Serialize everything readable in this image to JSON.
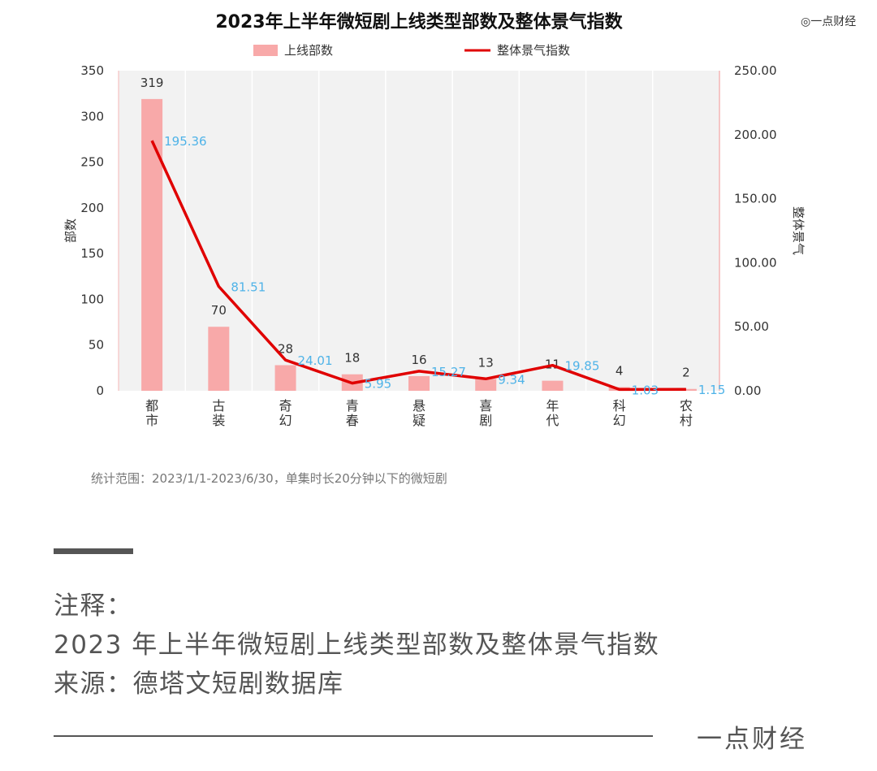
{
  "watermark": "◎一点财经",
  "chart_data": {
    "type": "bar",
    "title": "2023年上半年微短剧上线类型部数及整体景气指数",
    "categories": [
      "都市",
      "古装",
      "奇幻",
      "青春",
      "悬疑",
      "喜剧",
      "年代",
      "科幻",
      "农村"
    ],
    "legend_position": "top",
    "series": [
      {
        "name": "上线部数",
        "type": "bar",
        "axis": "left",
        "color": "#f8a9a9",
        "values": [
          319,
          70,
          28,
          18,
          16,
          13,
          11,
          4,
          2
        ],
        "labels": [
          "319",
          "70",
          "28",
          "18",
          "16",
          "13",
          "11",
          "4",
          "2"
        ]
      },
      {
        "name": "整体景气指数",
        "type": "line",
        "axis": "right",
        "color": "#e00000",
        "values": [
          195.36,
          81.51,
          24.01,
          5.95,
          15.27,
          9.34,
          19.85,
          1.03,
          1.15
        ],
        "labels": [
          "195.36",
          "81.51",
          "24.01",
          "5.95",
          "15.27",
          "9.34",
          "19.85",
          "1.03",
          "1.15"
        ]
      }
    ],
    "ylabel": "部数",
    "y2label": "整体景气",
    "ylim": [
      0,
      350
    ],
    "yticks": [
      "0",
      "50",
      "100",
      "150",
      "200",
      "250",
      "300",
      "350"
    ],
    "y2lim": [
      0,
      250
    ],
    "y2ticks": [
      "0.00",
      "50.00",
      "100.00",
      "150.00",
      "200.00",
      "250.00"
    ],
    "grid": true,
    "footnote": "统计范围：2023/1/1-2023/6/30，单集时长20分钟以下的微短剧",
    "colors": {
      "plot_bg": "#f2f2f2",
      "grid": "#ffffff",
      "data_label_line": "#4fb3e8",
      "data_label_bar": "#333333"
    }
  },
  "notes": {
    "heading": "注释：",
    "line1": "2023 年上半年微短剧上线类型部数及整体景气指数",
    "line2": "来源：德塔文短剧数据库"
  },
  "brand": "一点财经"
}
